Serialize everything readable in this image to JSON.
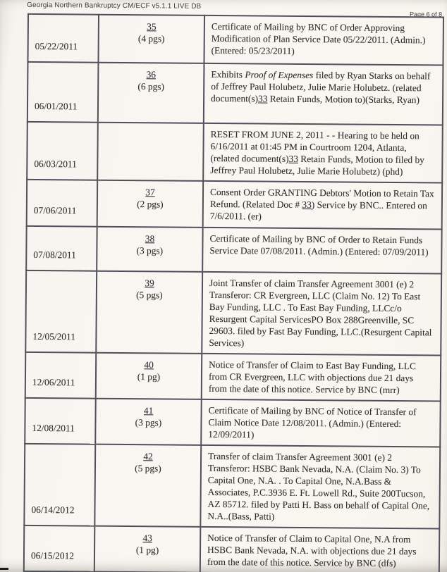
{
  "header": {
    "left": "Georgia Northern Bankruptcy CM/ECF v5.1.1 LIVE DB",
    "right": "Page 6 of 8"
  },
  "docket": {
    "rows": [
      {
        "date": "05/22/2011",
        "doc_number": "35",
        "pages": "(4 pgs)",
        "description": [
          {
            "text": "Certificate of Mailing by BNC of Order Approving Modification of Plan Service Date 05/22/2011. (Admin.) (Entered: 05/23/2011)",
            "style": "plain"
          }
        ]
      },
      {
        "date": "06/01/2011",
        "doc_number": "36",
        "pages": "(6 pgs)",
        "description": [
          {
            "text": "Exhibits ",
            "style": "plain"
          },
          {
            "text": "Proof of Expenses",
            "style": "italic"
          },
          {
            "text": " filed by Ryan Starks on behalf of Jeffrey Paul Holubetz, Julie Marie Holubetz. (related document(s)",
            "style": "plain"
          },
          {
            "text": "33",
            "style": "doc-ref"
          },
          {
            "text": " Retain Funds, Motion to)(Starks, Ryan)",
            "style": "plain"
          }
        ]
      },
      {
        "date": "06/03/2011",
        "doc_number": "",
        "pages": "",
        "description": [
          {
            "text": "RESET FROM JUNE 2, 2011 - - Hearing to be held on 6/16/2011 at 01:45 PM in Courtroom 1204, Atlanta, (related document(s)",
            "style": "plain"
          },
          {
            "text": "33",
            "style": "doc-ref"
          },
          {
            "text": " Retain Funds, Motion to filed by Jeffrey Paul Holubetz, Julie Marie Holubetz) (phd)",
            "style": "plain"
          }
        ]
      },
      {
        "date": "07/06/2011",
        "doc_number": "37",
        "pages": "(2 pgs)",
        "description": [
          {
            "text": "Consent Order GRANTING Debtors' Motion to Retain Tax Refund. (Related Doc # ",
            "style": "plain"
          },
          {
            "text": "33",
            "style": "doc-ref"
          },
          {
            "text": ") Service by BNC.. Entered on 7/6/2011. (er)",
            "style": "plain"
          }
        ]
      },
      {
        "date": "07/08/2011",
        "doc_number": "38",
        "pages": "(3 pgs)",
        "description": [
          {
            "text": "Certificate of Mailing by BNC of Order to Retain Funds Service Date 07/08/2011. (Admin.) (Entered: 07/09/2011)",
            "style": "plain"
          }
        ]
      },
      {
        "date": "12/05/2011",
        "doc_number": "39",
        "pages": "(5 pgs)",
        "description": [
          {
            "text": "Joint Transfer of claim Transfer Agreement 3001 (e) 2 Transferor: CR Evergreen, LLC (Claim No. 12) To East Bay Funding, LLC . To East Bay Funding, LLCc/o Resurgent Capital ServicesPO Box 288Greenville, SC 29603. filed by Fast Bay Funding, LLC.(Resurgent Capital Services)",
            "style": "plain"
          }
        ]
      },
      {
        "date": "12/06/2011",
        "doc_number": "40",
        "pages": "(1 pg)",
        "description": [
          {
            "text": "Notice of Transfer of Claim to East Bay Funding, LLC from CR Evergreen, LLC with objections due 21 days from the date of this notice. Service by BNC (mrr)",
            "style": "plain"
          }
        ]
      },
      {
        "date": "12/08/2011",
        "doc_number": "41",
        "pages": "(3 pgs)",
        "description": [
          {
            "text": "Certificate of Mailing by BNC of Notice of Transfer of Claim Notice Date 12/08/2011. (Admin.) (Entered: 12/09/2011)",
            "style": "plain"
          }
        ]
      },
      {
        "date": "06/14/2012",
        "doc_number": "42",
        "pages": "(5 pgs)",
        "description": [
          {
            "text": "Transfer of claim Transfer Agreement 3001 (e) 2 Transferor: HSBC Bank Nevada, N.A. (Claim No. 3) To Capital One, N.A. . To Capital One, N.A.Bass & Associates, P.C.3936 E. Ft. Lowell Rd., Suite 200Tucson, AZ 85712. filed by Patti H. Bass on behalf of Capital One, N.A..(Bass, Patti)",
            "style": "plain"
          }
        ]
      },
      {
        "date": "06/15/2012",
        "doc_number": "43",
        "pages": "(1 pg)",
        "description": [
          {
            "text": "Notice of Transfer of Claim to Capital One, N.A from HSBC Bank Nevada, N.A. with objections due 21 days from the date of this notice. Service by BNC (dfs)",
            "style": "plain"
          }
        ]
      }
    ]
  }
}
